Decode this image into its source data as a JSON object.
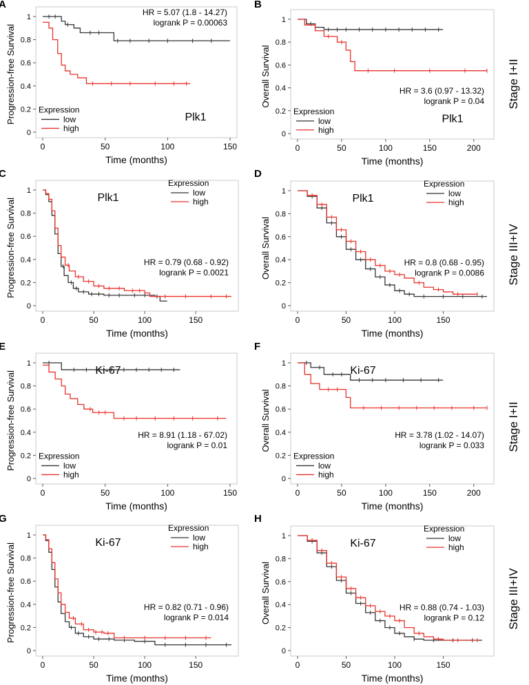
{
  "figure": {
    "stage_labels": [
      "Stage I+II",
      "Stage III+IV",
      "Stage I+II",
      "Stage III+IV"
    ],
    "legend_title": "Expression",
    "legend_low": "low",
    "legend_high": "high",
    "colors": {
      "low": "#333333",
      "high": "#e8302a"
    }
  },
  "chart_data": [
    {
      "id": "A",
      "type": "line",
      "gene": "Plk1",
      "ylabel": "Progression-free  Survival",
      "xlabel": "Time (months)",
      "xlim": [
        0,
        150
      ],
      "xticks": [
        0,
        50,
        100,
        150
      ],
      "ylim": [
        0,
        1
      ],
      "yticks": [
        0,
        0.2,
        0.4,
        0.6,
        0.8,
        1
      ],
      "hr": "HR = 5.07 (1.8 - 14.27)",
      "logrank": "logrank P = 0.00063",
      "series": [
        {
          "name": "low",
          "x": [
            0,
            15,
            18,
            25,
            30,
            35,
            57,
            150
          ],
          "y": [
            1,
            0.96,
            0.93,
            0.9,
            0.86,
            0.86,
            0.79,
            0.79
          ],
          "censor": [
            5,
            10,
            20,
            38,
            45,
            60,
            70,
            85,
            100,
            120,
            135
          ]
        },
        {
          "name": "high",
          "x": [
            0,
            5,
            8,
            12,
            15,
            18,
            22,
            28,
            35,
            118
          ],
          "y": [
            0.95,
            0.9,
            0.8,
            0.68,
            0.58,
            0.53,
            0.5,
            0.47,
            0.42,
            0.42
          ],
          "censor": [
            40,
            55,
            70,
            90,
            105,
            115
          ]
        }
      ]
    },
    {
      "id": "B",
      "type": "line",
      "gene": "Plk1",
      "ylabel": "Overall  Survival",
      "xlabel": "Time (months)",
      "xlim": [
        0,
        215
      ],
      "xticks": [
        0,
        50,
        100,
        150,
        200
      ],
      "ylim": [
        0,
        1
      ],
      "yticks": [
        0,
        0.2,
        0.4,
        0.6,
        0.8,
        1
      ],
      "hr": "HR = 3.6 (0.97 - 13.32)",
      "logrank": "logrank P = 0.04",
      "series": [
        {
          "name": "low",
          "x": [
            0,
            10,
            20,
            30,
            165
          ],
          "y": [
            1,
            0.96,
            0.93,
            0.91,
            0.91
          ],
          "censor": [
            15,
            35,
            45,
            55,
            70,
            85,
            100,
            115,
            130,
            145,
            160
          ]
        },
        {
          "name": "high",
          "x": [
            0,
            8,
            20,
            30,
            45,
            55,
            60,
            65,
            215
          ],
          "y": [
            1,
            0.95,
            0.9,
            0.85,
            0.8,
            0.73,
            0.63,
            0.55,
            0.55
          ],
          "censor": [
            35,
            50,
            80,
            110,
            150,
            190,
            215
          ]
        }
      ]
    },
    {
      "id": "C",
      "type": "line",
      "gene": "Plk1",
      "ylabel": "Progression-free  Survival",
      "xlabel": "Time (months)",
      "xlim": [
        0,
        185
      ],
      "xticks": [
        0,
        50,
        100,
        150
      ],
      "ylim": [
        0,
        1
      ],
      "yticks": [
        0,
        0.2,
        0.4,
        0.6,
        0.8,
        1
      ],
      "hr": "HR = 0.79 (0.68 - 0.92)",
      "logrank": "logrank P = 0.0021",
      "series": [
        {
          "name": "low",
          "x": [
            0,
            3,
            6,
            9,
            12,
            15,
            18,
            21,
            25,
            30,
            35,
            45,
            60,
            80,
            110,
            115,
            122
          ],
          "y": [
            1,
            0.96,
            0.9,
            0.78,
            0.62,
            0.45,
            0.34,
            0.26,
            0.2,
            0.15,
            0.12,
            0.1,
            0.09,
            0.09,
            0.08,
            0.04,
            0.04
          ],
          "censor": [
            20,
            28,
            33,
            40,
            48,
            55,
            65,
            75,
            90,
            100,
            112
          ]
        },
        {
          "name": "high",
          "x": [
            0,
            3,
            6,
            9,
            12,
            15,
            18,
            22,
            26,
            32,
            40,
            50,
            60,
            80,
            100,
            105,
            185
          ],
          "y": [
            1,
            0.97,
            0.92,
            0.82,
            0.67,
            0.52,
            0.42,
            0.35,
            0.3,
            0.25,
            0.21,
            0.17,
            0.15,
            0.13,
            0.11,
            0.08,
            0.08
          ],
          "censor": [
            25,
            35,
            45,
            55,
            65,
            75,
            88,
            95,
            120,
            140,
            165,
            180
          ]
        }
      ]
    },
    {
      "id": "D",
      "type": "line",
      "gene": "Plk1",
      "ylabel": "Overall  Survival",
      "xlabel": "Time (months)",
      "xlim": [
        0,
        195
      ],
      "xticks": [
        0,
        50,
        100,
        150
      ],
      "ylim": [
        0,
        1
      ],
      "yticks": [
        0,
        0.2,
        0.4,
        0.6,
        0.8,
        1
      ],
      "hr": "HR = 0.8 (0.68 - 0.95)",
      "logrank": "logrank P = 0.0086",
      "series": [
        {
          "name": "low",
          "x": [
            0,
            10,
            20,
            30,
            40,
            50,
            60,
            70,
            80,
            90,
            100,
            110,
            120,
            195
          ],
          "y": [
            1,
            0.95,
            0.85,
            0.72,
            0.6,
            0.49,
            0.4,
            0.32,
            0.25,
            0.18,
            0.13,
            0.1,
            0.08,
            0.08
          ],
          "censor": [
            15,
            25,
            35,
            45,
            55,
            65,
            75,
            85,
            95,
            105,
            115,
            130,
            150,
            170,
            190
          ]
        },
        {
          "name": "high",
          "x": [
            0,
            10,
            20,
            30,
            40,
            50,
            60,
            70,
            80,
            90,
            100,
            110,
            120,
            130,
            140,
            150,
            160,
            185
          ],
          "y": [
            1,
            0.96,
            0.88,
            0.77,
            0.66,
            0.56,
            0.47,
            0.4,
            0.35,
            0.3,
            0.27,
            0.24,
            0.2,
            0.16,
            0.14,
            0.12,
            0.1,
            0.1
          ],
          "censor": [
            15,
            25,
            35,
            45,
            55,
            65,
            75,
            85,
            95,
            105,
            125,
            145,
            165,
            185
          ]
        }
      ]
    },
    {
      "id": "E",
      "type": "line",
      "gene": "Ki-67",
      "ylabel": "Progression-free  Survival",
      "xlabel": "Time (months)",
      "xlim": [
        0,
        150
      ],
      "xticks": [
        0,
        50,
        100,
        150
      ],
      "ylim": [
        0,
        1
      ],
      "yticks": [
        0,
        0.2,
        0.4,
        0.6,
        0.8,
        1
      ],
      "hr": "HR = 8.91 (1.18 - 67.02)",
      "logrank": "logrank P = 0.01",
      "series": [
        {
          "name": "low",
          "x": [
            0,
            15,
            110
          ],
          "y": [
            1,
            0.94,
            0.94
          ],
          "censor": [
            5,
            25,
            35,
            45,
            55,
            65,
            75,
            85,
            95,
            105
          ]
        },
        {
          "name": "high",
          "x": [
            0,
            5,
            10,
            15,
            18,
            22,
            28,
            33,
            40,
            57,
            147
          ],
          "y": [
            0.98,
            0.92,
            0.86,
            0.8,
            0.73,
            0.69,
            0.64,
            0.6,
            0.57,
            0.52,
            0.52
          ],
          "censor": [
            38,
            45,
            50,
            65,
            75,
            90,
            105,
            120,
            140
          ]
        }
      ]
    },
    {
      "id": "F",
      "type": "line",
      "gene": "Ki-67",
      "ylabel": "Overall  Survival",
      "xlabel": "Time (months)",
      "xlim": [
        0,
        215
      ],
      "xticks": [
        0,
        50,
        100,
        150,
        200
      ],
      "ylim": [
        0,
        1
      ],
      "yticks": [
        0,
        0.2,
        0.4,
        0.6,
        0.8,
        1
      ],
      "hr": "HR = 3.78 (1.02 - 14.07)",
      "logrank": "logrank P = 0.033",
      "series": [
        {
          "name": "low",
          "x": [
            0,
            15,
            30,
            60,
            165
          ],
          "y": [
            1,
            0.96,
            0.9,
            0.85,
            0.85
          ],
          "censor": [
            10,
            25,
            40,
            50,
            70,
            85,
            100,
            120,
            140,
            160
          ]
        },
        {
          "name": "high",
          "x": [
            0,
            8,
            15,
            25,
            55,
            60,
            215
          ],
          "y": [
            1,
            0.9,
            0.82,
            0.77,
            0.7,
            0.61,
            0.61
          ],
          "censor": [
            35,
            45,
            75,
            95,
            115,
            135,
            155,
            175,
            200,
            215
          ]
        }
      ]
    },
    {
      "id": "G",
      "type": "line",
      "gene": "Ki-67",
      "ylabel": "Progression-free  Survival",
      "xlabel": "Time (months)",
      "xlim": [
        0,
        185
      ],
      "xticks": [
        0,
        50,
        100,
        150
      ],
      "ylim": [
        0,
        1
      ],
      "yticks": [
        0,
        0.2,
        0.4,
        0.6,
        0.8,
        1
      ],
      "hr": "HR = 0.82 (0.71 - 0.96)",
      "logrank": "logrank P = 0.014",
      "series": [
        {
          "name": "low",
          "x": [
            0,
            3,
            6,
            9,
            12,
            15,
            18,
            22,
            26,
            32,
            40,
            50,
            70,
            90,
            110,
            185
          ],
          "y": [
            1,
            0.95,
            0.85,
            0.7,
            0.55,
            0.42,
            0.32,
            0.25,
            0.2,
            0.15,
            0.12,
            0.1,
            0.09,
            0.08,
            0.05,
            0.05
          ],
          "censor": [
            28,
            35,
            45,
            55,
            65,
            80,
            100,
            120,
            140,
            160,
            180
          ]
        },
        {
          "name": "high",
          "x": [
            0,
            3,
            6,
            9,
            12,
            15,
            18,
            22,
            26,
            32,
            40,
            50,
            60,
            70,
            165
          ],
          "y": [
            1,
            0.96,
            0.88,
            0.76,
            0.62,
            0.5,
            0.4,
            0.33,
            0.28,
            0.23,
            0.18,
            0.16,
            0.15,
            0.11,
            0.11
          ],
          "censor": [
            30,
            38,
            45,
            52,
            58,
            64,
            80,
            100,
            120,
            140,
            160
          ]
        }
      ]
    },
    {
      "id": "H",
      "type": "line",
      "gene": "Ki-67",
      "ylabel": "Overall  Survival",
      "xlabel": "Time (months)",
      "xlim": [
        0,
        195
      ],
      "xticks": [
        0,
        50,
        100,
        150
      ],
      "ylim": [
        0,
        1
      ],
      "yticks": [
        0,
        0.2,
        0.4,
        0.6,
        0.8,
        1
      ],
      "hr": "HR = 0.88 (0.74 - 1.03)",
      "logrank": "logrank P = 0.12",
      "series": [
        {
          "name": "low",
          "x": [
            0,
            10,
            20,
            30,
            40,
            50,
            60,
            70,
            80,
            90,
            100,
            110,
            120,
            130,
            190
          ],
          "y": [
            1,
            0.95,
            0.85,
            0.73,
            0.61,
            0.5,
            0.41,
            0.33,
            0.26,
            0.2,
            0.15,
            0.12,
            0.1,
            0.09,
            0.09
          ],
          "censor": [
            15,
            25,
            35,
            45,
            55,
            65,
            75,
            85,
            95,
            105,
            120,
            140,
            160,
            180
          ]
        },
        {
          "name": "high",
          "x": [
            0,
            10,
            20,
            30,
            40,
            50,
            60,
            70,
            80,
            90,
            100,
            110,
            120,
            130,
            140,
            150,
            185
          ],
          "y": [
            1,
            0.96,
            0.87,
            0.76,
            0.64,
            0.54,
            0.46,
            0.39,
            0.34,
            0.3,
            0.26,
            0.2,
            0.15,
            0.12,
            0.1,
            0.09,
            0.09
          ],
          "censor": [
            15,
            25,
            35,
            45,
            55,
            65,
            75,
            85,
            95,
            105,
            125,
            145,
            165,
            185
          ]
        }
      ]
    }
  ]
}
